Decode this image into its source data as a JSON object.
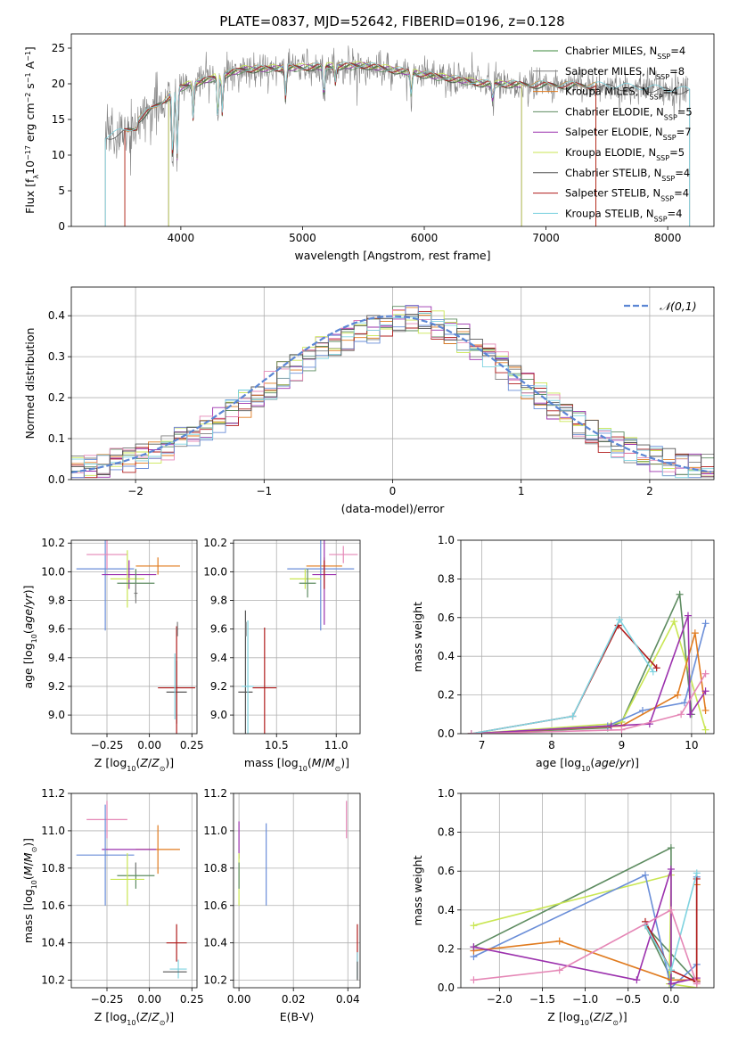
{
  "suptitle": "PLATE=0837, MJD=52642, FIBERID=0196, z=0.128",
  "colors": {
    "Chabrier MILES": "#3b8a3b",
    "Salpeter MILES": "#7e7e7e",
    "Kroupa MILES": "#e07b1f",
    "Chabrier ELODIE": "#5e8c61",
    "Salpeter ELODIE": "#9b30ad",
    "Kroupa ELODIE": "#c9e653",
    "Chabrier STELIB": "#555555",
    "Salpeter STELIB": "#b01c1c",
    "Kroupa STELIB": "#7fd3e0",
    "blue": "#6a8ed8",
    "pink": "#e587b6",
    "gaussian": "#5b86d4"
  },
  "chart_data": [
    {
      "id": "spectrum",
      "type": "line",
      "title": "",
      "xlabel": "wavelength [Angstrom, rest frame]",
      "ylabel": "Flux [f_λ10^-17 erg cm^-2 s^-1 A^-1]",
      "xlim": [
        3100,
        8380
      ],
      "ylim": [
        0,
        27
      ],
      "xticks": [
        4000,
        5000,
        6000,
        7000,
        8000
      ],
      "yticks": [
        0,
        5,
        10,
        15,
        20,
        25
      ],
      "grid": false,
      "legend_placement": "right",
      "legend": [
        "Chabrier MILES, N_SSP=4",
        "Salpeter MILES, N_SSP=8",
        "Kroupa MILES, N_SSP=4",
        "Chabrier ELODIE, N_SSP=5",
        "Salpeter ELODIE, N_SSP=7",
        "Kroupa ELODIE, N_SSP=5",
        "Chabrier STELIB, N_SSP=4",
        "Salpeter STELIB, N_SSP=4",
        "Kroupa STELIB, N_SSP=4"
      ]
    },
    {
      "id": "residuals",
      "type": "line",
      "xlabel": "(data-model)/error",
      "ylabel": "Normed distribution",
      "xlim": [
        -2.5,
        2.5
      ],
      "ylim": [
        0,
        0.47
      ],
      "xticks": [
        -2,
        -1,
        0,
        1,
        2
      ],
      "yticks": [
        0.0,
        0.1,
        0.2,
        0.3,
        0.4
      ],
      "grid": true,
      "legend_placement": "top-right",
      "legend": [
        "𝒩(0,1)"
      ]
    },
    {
      "id": "age_vs_Z",
      "type": "scatter",
      "xlabel": "Z [log10(Z/Z⊙)]",
      "ylabel": "age  [log10(age/yr)]",
      "xlim": [
        -0.46,
        0.28
      ],
      "ylim": [
        8.87,
        10.22
      ],
      "xticks": [
        -0.25,
        0.0,
        0.25
      ],
      "yticks": [
        9.0,
        9.2,
        9.4,
        9.6,
        9.8,
        10.0,
        10.2
      ],
      "grid": true,
      "points": [
        {
          "c": "blue",
          "x": -0.26,
          "xe": 0.17,
          "y": 10.02,
          "ye": 0.43
        },
        {
          "c": "pink",
          "x": -0.25,
          "xe": 0.12,
          "y": 10.12,
          "ye": 0.1
        },
        {
          "c": "Kroupa MILES",
          "x": 0.05,
          "xe": 0.13,
          "y": 10.04,
          "ye": 0.06
        },
        {
          "c": "Salpeter ELODIE",
          "x": -0.12,
          "xe": 0.16,
          "y": 9.98,
          "ye": 0.1
        },
        {
          "c": "Kroupa ELODIE",
          "x": -0.13,
          "xe": 0.1,
          "y": 9.95,
          "ye": 0.2
        },
        {
          "c": "Chabrier ELODIE",
          "x": -0.08,
          "xe": 0.11,
          "y": 9.92,
          "ye": 0.1
        },
        {
          "c": "Salpeter MILES",
          "x": -0.08,
          "xe": 0.01,
          "y": 9.85,
          "ye": 0.07
        },
        {
          "c": "Chabrier STELIB",
          "x": 0.16,
          "xe": 0.06,
          "y": 9.16,
          "ye": 0.22
        },
        {
          "c": "Salpeter STELIB",
          "x": 0.16,
          "xe": 0.11,
          "y": 9.19,
          "ye": 0.43
        },
        {
          "c": "Kroupa STELIB",
          "x": 0.15,
          "xe": 0.005,
          "y": 9.2,
          "ye": 0.23
        },
        {
          "c": "Salpeter MILES",
          "x": 0.165,
          "xe": 0.005,
          "y": 9.6,
          "ye": 0.05
        }
      ]
    },
    {
      "id": "age_vs_mass",
      "type": "scatter",
      "xlabel": "mass [log10(M/M⊙)]",
      "ylabel": "",
      "xlim": [
        10.14,
        11.2
      ],
      "ylim": [
        8.87,
        10.22
      ],
      "xticks": [
        10.5,
        11.0
      ],
      "yticks": [
        9.0,
        9.2,
        9.4,
        9.6,
        9.8,
        10.0,
        10.2
      ],
      "grid": true,
      "points": [
        {
          "c": "pink",
          "x": 11.06,
          "xe": 0.12,
          "y": 10.12,
          "ye": 0.06
        },
        {
          "c": "Kroupa MILES",
          "x": 10.9,
          "xe": 0.15,
          "y": 10.04,
          "ye": 0.06
        },
        {
          "c": "blue",
          "x": 10.87,
          "xe": 0.28,
          "y": 10.02,
          "ye": 0.43
        },
        {
          "c": "Salpeter ELODIE",
          "x": 10.9,
          "xe": 0.1,
          "y": 9.98,
          "ye": 0.35
        },
        {
          "c": "Salpeter STELIB",
          "x": 10.9,
          "xe": 0.0,
          "y": 9.98,
          "ye": 0.1
        },
        {
          "c": "Kroupa ELODIE",
          "x": 10.74,
          "xe": 0.13,
          "y": 9.95,
          "ye": 0.07
        },
        {
          "c": "Chabrier ELODIE",
          "x": 10.76,
          "xe": 0.07,
          "y": 9.92,
          "ye": 0.1
        },
        {
          "c": "Chabrier STELIB",
          "x": 10.24,
          "xe": 0.06,
          "y": 9.16,
          "ye": 0.57
        },
        {
          "c": "Salpeter STELIB",
          "x": 10.4,
          "xe": 0.1,
          "y": 9.19,
          "ye": 0.42
        },
        {
          "c": "Kroupa STELIB",
          "x": 10.26,
          "xe": 0.05,
          "y": 9.2,
          "ye": 0.46
        },
        {
          "c": "Salpeter MILES",
          "x": 10.245,
          "xe": 0.0,
          "y": 9.6,
          "ye": 0.05
        }
      ]
    },
    {
      "id": "weight_vs_age",
      "type": "line",
      "xlabel": "age  [log10(age/yr)]",
      "ylabel": "mass weight",
      "xlim": [
        6.7,
        10.32
      ],
      "ylim": [
        0,
        1.0
      ],
      "xticks": [
        7,
        8,
        9,
        10
      ],
      "yticks": [
        0.0,
        0.2,
        0.4,
        0.6,
        0.8,
        1.0
      ],
      "grid": true,
      "series": [
        {
          "c": "Chabrier ELODIE",
          "x": [
            6.85,
            8.8,
            9.0,
            9.83,
            10.0
          ],
          "y": [
            0.0,
            0.03,
            0.06,
            0.72,
            0.1
          ]
        },
        {
          "c": "Kroupa ELODIE",
          "x": [
            6.85,
            8.85,
            9.0,
            9.75,
            10.2
          ],
          "y": [
            0.0,
            0.05,
            0.06,
            0.58,
            0.02
          ]
        },
        {
          "c": "blue",
          "x": [
            6.85,
            8.8,
            9.3,
            9.9,
            10.2
          ],
          "y": [
            0.0,
            0.04,
            0.12,
            0.16,
            0.57
          ]
        },
        {
          "c": "Kroupa MILES",
          "x": [
            6.85,
            9.0,
            9.8,
            10.05,
            10.2
          ],
          "y": [
            0.0,
            0.04,
            0.2,
            0.52,
            0.12
          ]
        },
        {
          "c": "Salpeter ELODIE",
          "x": [
            6.85,
            8.85,
            9.4,
            9.95,
            9.98,
            10.2
          ],
          "y": [
            0.0,
            0.04,
            0.05,
            0.61,
            0.1,
            0.22
          ]
        },
        {
          "c": "Salpeter STELIB",
          "x": [
            6.85,
            8.3,
            8.95,
            9.5
          ],
          "y": [
            0.0,
            0.09,
            0.56,
            0.34
          ]
        },
        {
          "c": "Kroupa STELIB",
          "x": [
            6.85,
            8.3,
            8.97,
            9.45
          ],
          "y": [
            0.0,
            0.09,
            0.59,
            0.32
          ]
        },
        {
          "c": "pink",
          "x": [
            6.85,
            9.0,
            9.85,
            10.2
          ],
          "y": [
            0.0,
            0.02,
            0.1,
            0.31
          ]
        }
      ]
    },
    {
      "id": "mass_vs_Z",
      "type": "scatter",
      "xlabel": "Z [log10(Z/Z⊙)]",
      "ylabel": "mass [log10(M/M⊙)]",
      "xlim": [
        -0.46,
        0.28
      ],
      "ylim": [
        10.16,
        11.2
      ],
      "xticks": [
        -0.25,
        0.0,
        0.25
      ],
      "yticks": [
        10.2,
        10.4,
        10.6,
        10.8,
        11.0,
        11.2
      ],
      "grid": true,
      "points": [
        {
          "c": "pink",
          "x": -0.25,
          "xe": 0.12,
          "y": 11.06,
          "ye": 0.1
        },
        {
          "c": "Kroupa MILES",
          "x": 0.05,
          "xe": 0.13,
          "y": 10.9,
          "ye": 0.13
        },
        {
          "c": "Salpeter ELODIE",
          "x": -0.12,
          "xe": 0.16,
          "y": 10.9,
          "ye": 0.0
        },
        {
          "c": "blue",
          "x": -0.26,
          "xe": 0.17,
          "y": 10.87,
          "ye": 0.27
        },
        {
          "c": "Chabrier ELODIE",
          "x": -0.08,
          "xe": 0.11,
          "y": 10.76,
          "ye": 0.07
        },
        {
          "c": "Kroupa ELODIE",
          "x": -0.13,
          "xe": 0.1,
          "y": 10.74,
          "ye": 0.14
        },
        {
          "c": "Salpeter MILES",
          "x": -0.08,
          "xe": 0.0,
          "y": 10.8,
          "ye": 0.03
        },
        {
          "c": "Salpeter STELIB",
          "x": 0.16,
          "xe": 0.06,
          "y": 10.4,
          "ye": 0.1
        },
        {
          "c": "Kroupa STELIB",
          "x": 0.17,
          "xe": 0.05,
          "y": 10.26,
          "ye": 0.05
        },
        {
          "c": "Chabrier STELIB",
          "x": 0.15,
          "xe": 0.07,
          "y": 10.245,
          "ye": 0.0
        }
      ]
    },
    {
      "id": "mass_vs_EBV",
      "type": "scatter",
      "xlabel": "E(B-V)",
      "ylabel": "",
      "xlim": [
        -0.002,
        0.0445
      ],
      "ylim": [
        10.16,
        11.2
      ],
      "xticks": [
        0.0,
        0.02,
        0.04
      ],
      "yticks": [
        10.2,
        10.4,
        10.6,
        10.8,
        11.0,
        11.2
      ],
      "grid": true,
      "points": [
        {
          "c": "Salpeter ELODIE",
          "x": 0.0,
          "xe": 0.0,
          "y": 10.95,
          "ye": 0.1
        },
        {
          "c": "Kroupa ELODIE",
          "x": 0.0,
          "xe": 0.0,
          "y": 10.74,
          "ye": 0.14
        },
        {
          "c": "Chabrier ELODIE",
          "x": 0.0,
          "xe": 0.0,
          "y": 10.76,
          "ye": 0.07
        },
        {
          "c": "blue",
          "x": 0.01,
          "xe": 0.0,
          "y": 10.82,
          "ye": 0.22
        },
        {
          "c": "pink",
          "x": 0.0395,
          "xe": 0.0,
          "y": 11.06,
          "ye": 0.1
        },
        {
          "c": "Salpeter STELIB",
          "x": 0.0435,
          "xe": 0.0,
          "y": 10.4,
          "ye": 0.1
        },
        {
          "c": "Kroupa STELIB",
          "x": 0.0435,
          "xe": 0.0,
          "y": 10.28,
          "ye": 0.07
        },
        {
          "c": "Chabrier STELIB",
          "x": 0.0435,
          "xe": 0.0,
          "y": 10.25,
          "ye": 0.05
        }
      ]
    },
    {
      "id": "weight_vs_Z",
      "type": "line",
      "xlabel": "Z [log10(Z/Z⊙)]",
      "ylabel": "mass weight",
      "xlim": [
        -2.45,
        0.5
      ],
      "ylim": [
        0,
        1.0
      ],
      "xticks": [
        -2.0,
        -1.5,
        -1.0,
        -0.5,
        0.0
      ],
      "yticks": [
        0.0,
        0.2,
        0.4,
        0.6,
        0.8,
        1.0
      ],
      "grid": true,
      "series": [
        {
          "c": "Chabrier ELODIE",
          "x": [
            -2.3,
            0.0,
            0.0,
            -0.3,
            0.3
          ],
          "y": [
            0.21,
            0.72,
            0.05,
            0.32,
            0.03
          ]
        },
        {
          "c": "Kroupa ELODIE",
          "x": [
            -2.3,
            0.0,
            -0.02,
            0.3
          ],
          "y": [
            0.32,
            0.58,
            0.02,
            0.0
          ]
        },
        {
          "c": "blue",
          "x": [
            -2.3,
            -0.3,
            0.0,
            0.3,
            0.3
          ],
          "y": [
            0.16,
            0.58,
            0.0,
            0.12,
            0.57
          ]
        },
        {
          "c": "Kroupa MILES",
          "x": [
            -2.3,
            -1.3,
            0.0,
            0.3,
            0.3
          ],
          "y": [
            0.19,
            0.24,
            0.04,
            0.04,
            0.53
          ]
        },
        {
          "c": "Salpeter ELODIE",
          "x": [
            -2.3,
            -0.4,
            0.0,
            0.0,
            0.3
          ],
          "y": [
            0.21,
            0.04,
            0.61,
            0.02,
            0.05
          ]
        },
        {
          "c": "Salpeter STELIB",
          "x": [
            -0.3,
            0.0,
            0.3,
            0.3
          ],
          "y": [
            0.34,
            0.09,
            0.03,
            0.56
          ]
        },
        {
          "c": "Kroupa STELIB",
          "x": [
            -0.3,
            0.0,
            0.3
          ],
          "y": [
            0.32,
            0.09,
            0.59
          ]
        },
        {
          "c": "pink",
          "x": [
            -2.3,
            -1.3,
            0.0,
            0.3
          ],
          "y": [
            0.04,
            0.09,
            0.4,
            0.02
          ]
        }
      ]
    }
  ]
}
